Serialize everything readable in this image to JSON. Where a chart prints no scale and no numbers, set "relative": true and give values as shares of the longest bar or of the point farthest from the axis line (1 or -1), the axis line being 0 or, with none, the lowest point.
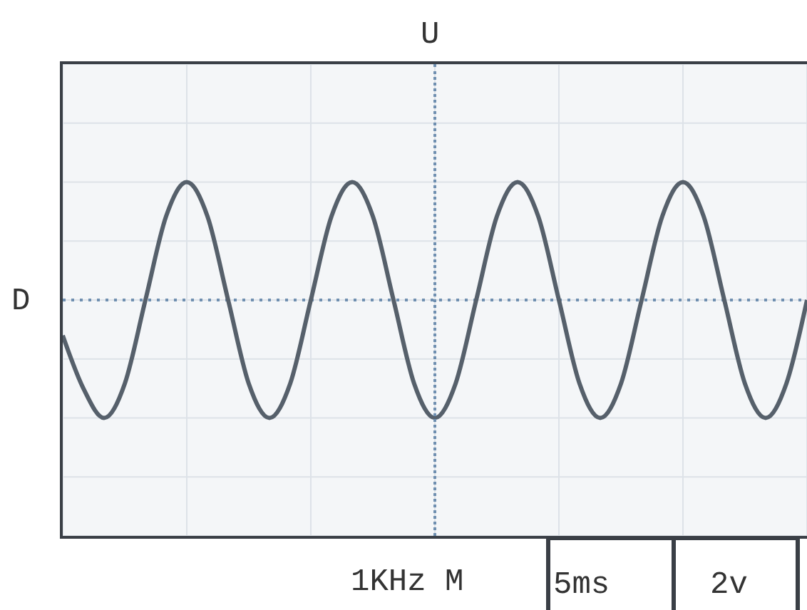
{
  "chart_data": {
    "type": "line",
    "relative": true,
    "grid": true,
    "legend": false,
    "marker": "none",
    "line_style": "solid",
    "categories": [
      null,
      null,
      null,
      null,
      null,
      null,
      null,
      null,
      null,
      null,
      null,
      null,
      null,
      null,
      null,
      null,
      null,
      null,
      null,
      null,
      null,
      null,
      null,
      null,
      null,
      null,
      null,
      null,
      null,
      null,
      null,
      null,
      null,
      null,
      null,
      null,
      null
    ],
    "series": [
      {
        "color": "#56606b",
        "values": [
          -0.3,
          -0.75,
          -1,
          -0.71,
          0,
          0.71,
          1,
          0.71,
          0,
          -0.71,
          -1,
          -0.71,
          0,
          0.71,
          1,
          0.71,
          0,
          -0.71,
          -1,
          -0.71,
          0,
          0.71,
          1,
          0.71,
          0,
          -0.71,
          -1,
          -0.71,
          0,
          0.71,
          1,
          0.71,
          0,
          -0.71,
          -1,
          -0.71,
          0
        ]
      }
    ],
    "ref_lines": [
      {
        "axis": "y",
        "value": 0,
        "line_style": "dotted",
        "color": "#6f8fb0"
      }
    ],
    "annotations": [
      "U",
      "D",
      "1KHz M",
      "5ms",
      "2v"
    ]
  }
}
